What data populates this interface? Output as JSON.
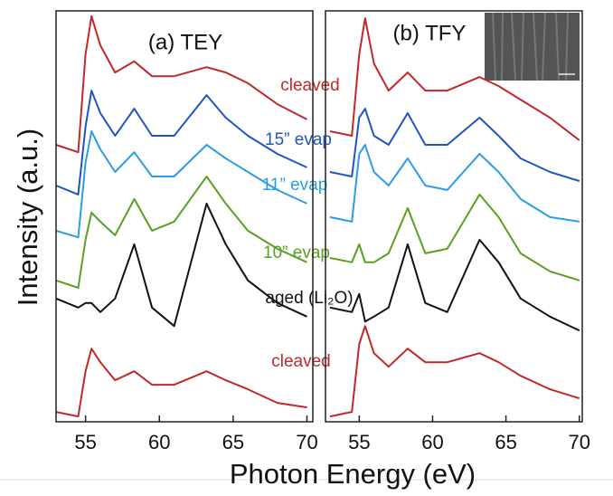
{
  "chart_data": [
    {
      "type": "line",
      "title": "(a) TEY",
      "xlabel": "Photon Energy (eV)",
      "ylabel": "Intensity (a.u.)",
      "x": [
        53,
        54.5,
        55,
        55.4,
        56,
        57,
        58.3,
        59.5,
        61,
        63.2,
        64.5,
        66,
        68,
        70
      ],
      "xlim": [
        53,
        70.4
      ],
      "ylim": [
        0,
        100
      ],
      "xticks": [
        55,
        60,
        65,
        70
      ],
      "series": [
        {
          "name": "cleaved",
          "color": "#c0282a",
          "values": [
            67.4,
            65.6,
            89.4,
            98.7,
            91.6,
            85.0,
            87.7,
            84.1,
            84.1,
            86.3,
            85.0,
            82.4,
            77.3,
            73.6
          ]
        },
        {
          "name": "15” evap",
          "color": "#1f55c0",
          "values": [
            57.5,
            55.3,
            71.8,
            80.6,
            75.1,
            69.6,
            76.2,
            69.6,
            69.6,
            79.5,
            74.0,
            69.6,
            65.2,
            61.9
          ]
        },
        {
          "name": "11” evap",
          "color": "#2a9ee0",
          "values": [
            46.5,
            44.9,
            63.0,
            70.7,
            66.3,
            60.8,
            65.6,
            59.7,
            59.7,
            67.4,
            64.1,
            60.8,
            56.4,
            53.1
          ]
        },
        {
          "name": "10” evap",
          "color": "#5aa020",
          "values": [
            34.4,
            32.6,
            44.3,
            50.9,
            48.7,
            45.4,
            54.2,
            46.5,
            48.7,
            59.7,
            53.1,
            46.5,
            42.1,
            38.8
          ]
        },
        {
          "name": "aged (Li₂O)",
          "color": "#111111",
          "values": [
            30.0,
            27.8,
            28.9,
            28.9,
            26.7,
            30.0,
            43.2,
            27.8,
            23.3,
            53.1,
            43.2,
            34.4,
            28.9,
            25.6
          ]
        },
        {
          "name": "cleaved",
          "color": "#c0282a",
          "values": [
            2.4,
            1.3,
            12.3,
            17.8,
            14.5,
            10.1,
            12.3,
            9.0,
            9.0,
            12.3,
            10.1,
            7.9,
            4.6,
            3.5
          ]
        }
      ]
    },
    {
      "type": "line",
      "title": "(b) TFY",
      "x": [
        53,
        54.5,
        55,
        55.4,
        56,
        57,
        58.3,
        59.5,
        61,
        63.2,
        64.5,
        66,
        68,
        70
      ],
      "xlim": [
        52.7,
        70.2
      ],
      "ylim": [
        0,
        100
      ],
      "xticks": [
        55,
        60,
        65,
        70
      ],
      "series": [
        {
          "color": "#c0282a",
          "values": [
            70.7,
            69.6,
            89.4,
            98.2,
            87.2,
            80.6,
            85.0,
            80.6,
            80.6,
            83.9,
            81.7,
            78.4,
            74.0,
            68.5
          ]
        },
        {
          "color": "#1f55c0",
          "values": [
            60.8,
            59.7,
            74.0,
            76.2,
            69.6,
            67.4,
            75.1,
            67.4,
            67.4,
            74.0,
            69.6,
            64.1,
            60.8,
            58.6
          ]
        },
        {
          "color": "#2a9ee0",
          "values": [
            49.8,
            48.7,
            65.2,
            67.4,
            60.8,
            57.5,
            64.1,
            57.5,
            56.4,
            65.2,
            60.8,
            54.2,
            49.8,
            48.7
          ]
        },
        {
          "color": "#5aa020",
          "values": [
            39.9,
            38.8,
            43.2,
            38.8,
            38.8,
            41.0,
            52.0,
            41.0,
            42.1,
            55.3,
            49.8,
            41.0,
            36.6,
            34.4
          ]
        },
        {
          "color": "#111111",
          "values": [
            27.8,
            26.7,
            31.1,
            24.4,
            25.6,
            27.8,
            43.2,
            28.9,
            26.7,
            44.3,
            38.8,
            30.0,
            25.6,
            22.2
          ]
        },
        {
          "color": "#c0282a",
          "values": [
            1.3,
            2.4,
            18.9,
            23.3,
            16.7,
            13.4,
            17.8,
            14.5,
            14.5,
            16.7,
            14.5,
            11.2,
            7.9,
            5.7
          ]
        }
      ]
    }
  ]
}
